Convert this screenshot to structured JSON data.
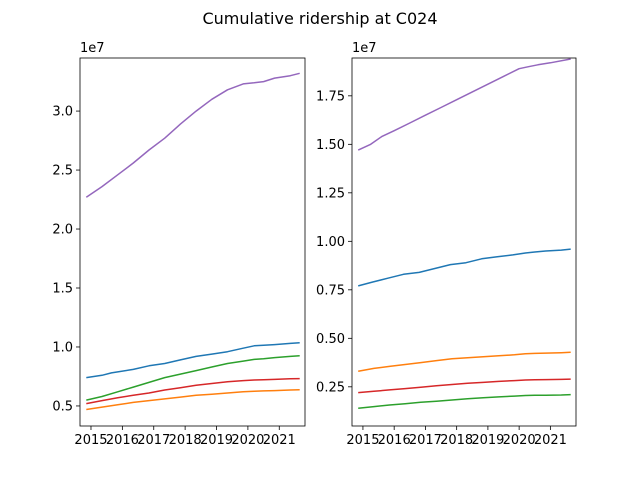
{
  "chart_data": {
    "title": "Cumulative ridership at C024",
    "panels": [
      {
        "type": "line",
        "xlabel": "",
        "ylabel": "",
        "y_offset_label": "1e7",
        "xlim": [
          2014.65,
          2021.82
        ],
        "ylim": [
          3.3,
          34.5
        ],
        "x_ticks": [
          2015,
          2016,
          2017,
          2018,
          2019,
          2020,
          2021
        ],
        "x_tick_labels": [
          "2015",
          "2016",
          "2017",
          "2018",
          "2019",
          "2020",
          "2021"
        ],
        "y_ticks": [
          5.0,
          10.0,
          15.0,
          20.0,
          25.0,
          30.0
        ],
        "y_tick_labels": [
          "0.5",
          "1.0",
          "1.5",
          "2.0",
          "2.5",
          "3.0"
        ],
        "grid": false,
        "series": [
          {
            "color": "#9467bd",
            "x": [
              2014.85,
              2015.35,
              2015.85,
              2016.35,
              2016.85,
              2017.35,
              2017.85,
              2018.35,
              2018.85,
              2019.35,
              2019.85,
              2020.2,
              2020.5,
              2020.85,
              2021.35,
              2021.65
            ],
            "values": [
              22.7,
              23.6,
              24.6,
              25.6,
              26.7,
              27.7,
              28.9,
              30.0,
              31.0,
              31.8,
              32.3,
              32.4,
              32.5,
              32.8,
              33.0,
              33.2
            ]
          },
          {
            "color": "#1f77b4",
            "x": [
              2014.85,
              2015.35,
              2015.65,
              2016.35,
              2016.85,
              2017.35,
              2017.85,
              2018.35,
              2018.85,
              2019.35,
              2019.85,
              2020.2,
              2020.5,
              2020.85,
              2021.35,
              2021.65
            ],
            "values": [
              7.4,
              7.6,
              7.8,
              8.1,
              8.4,
              8.6,
              8.9,
              9.2,
              9.4,
              9.6,
              9.9,
              10.1,
              10.15,
              10.2,
              10.3,
              10.35
            ]
          },
          {
            "color": "#2ca02c",
            "x": [
              2014.85,
              2015.35,
              2015.85,
              2016.35,
              2016.85,
              2017.35,
              2017.85,
              2018.35,
              2018.85,
              2019.35,
              2019.85,
              2020.2,
              2020.5,
              2020.85,
              2021.35,
              2021.65
            ],
            "values": [
              5.5,
              5.8,
              6.2,
              6.6,
              7.0,
              7.4,
              7.7,
              8.0,
              8.3,
              8.6,
              8.8,
              8.95,
              9.0,
              9.1,
              9.2,
              9.25
            ]
          },
          {
            "color": "#d62728",
            "x": [
              2014.85,
              2015.35,
              2015.85,
              2016.35,
              2016.85,
              2017.35,
              2017.85,
              2018.35,
              2018.85,
              2019.35,
              2019.85,
              2020.2,
              2020.5,
              2020.85,
              2021.35,
              2021.65
            ],
            "values": [
              5.2,
              5.45,
              5.7,
              5.9,
              6.1,
              6.35,
              6.55,
              6.75,
              6.9,
              7.05,
              7.15,
              7.2,
              7.22,
              7.25,
              7.3,
              7.32
            ]
          },
          {
            "color": "#ff7f0e",
            "x": [
              2014.85,
              2015.35,
              2015.85,
              2016.35,
              2016.85,
              2017.35,
              2017.85,
              2018.35,
              2018.85,
              2019.35,
              2019.85,
              2020.2,
              2020.5,
              2020.85,
              2021.35,
              2021.65
            ],
            "values": [
              4.7,
              4.9,
              5.1,
              5.3,
              5.45,
              5.6,
              5.75,
              5.9,
              6.0,
              6.1,
              6.2,
              6.25,
              6.28,
              6.3,
              6.35,
              6.38
            ]
          }
        ]
      },
      {
        "type": "line",
        "xlabel": "",
        "ylabel": "",
        "y_offset_label": "1e7",
        "xlim": [
          2014.65,
          2021.82
        ],
        "ylim": [
          0.48,
          19.45
        ],
        "x_ticks": [
          2015,
          2016,
          2017,
          2018,
          2019,
          2020,
          2021
        ],
        "x_tick_labels": [
          "2015",
          "2016",
          "2017",
          "2018",
          "2019",
          "2020",
          "2021"
        ],
        "y_ticks": [
          2.5,
          5.0,
          7.5,
          10.0,
          12.5,
          15.0,
          17.5
        ],
        "y_tick_labels": [
          "0.25",
          "0.50",
          "0.75",
          "1.00",
          "1.25",
          "1.50",
          "1.75"
        ],
        "grid": false,
        "series": [
          {
            "color": "#9467bd",
            "x": [
              2014.85,
              2015.25,
              2015.6,
              2016.0,
              2016.5,
              2017.0,
              2017.5,
              2018.0,
              2018.5,
              2019.0,
              2019.5,
              2020.0,
              2020.3,
              2020.6,
              2021.0,
              2021.65
            ],
            "values": [
              14.7,
              15.0,
              15.4,
              15.7,
              16.1,
              16.5,
              16.9,
              17.3,
              17.7,
              18.1,
              18.5,
              18.9,
              19.0,
              19.1,
              19.2,
              19.4
            ]
          },
          {
            "color": "#1f77b4",
            "x": [
              2014.85,
              2015.3,
              2015.8,
              2016.3,
              2016.8,
              2017.3,
              2017.8,
              2018.3,
              2018.8,
              2019.3,
              2019.8,
              2020.2,
              2020.5,
              2020.85,
              2021.35,
              2021.65
            ],
            "values": [
              7.7,
              7.9,
              8.1,
              8.3,
              8.4,
              8.6,
              8.8,
              8.9,
              9.1,
              9.2,
              9.3,
              9.4,
              9.45,
              9.5,
              9.55,
              9.6
            ]
          },
          {
            "color": "#ff7f0e",
            "x": [
              2014.85,
              2015.35,
              2015.85,
              2016.35,
              2016.85,
              2017.35,
              2017.85,
              2018.35,
              2018.85,
              2019.35,
              2019.85,
              2020.2,
              2020.5,
              2020.85,
              2021.35,
              2021.65
            ],
            "values": [
              3.3,
              3.45,
              3.55,
              3.65,
              3.75,
              3.85,
              3.95,
              4.0,
              4.05,
              4.1,
              4.15,
              4.2,
              4.22,
              4.24,
              4.26,
              4.28
            ]
          },
          {
            "color": "#d62728",
            "x": [
              2014.85,
              2015.35,
              2015.85,
              2016.35,
              2016.85,
              2017.35,
              2017.85,
              2018.35,
              2018.85,
              2019.35,
              2019.85,
              2020.2,
              2020.5,
              2020.85,
              2021.35,
              2021.65
            ],
            "values": [
              2.2,
              2.27,
              2.34,
              2.41,
              2.48,
              2.55,
              2.62,
              2.68,
              2.73,
              2.78,
              2.82,
              2.85,
              2.86,
              2.87,
              2.88,
              2.9
            ]
          },
          {
            "color": "#2ca02c",
            "x": [
              2014.85,
              2015.35,
              2015.85,
              2016.35,
              2016.85,
              2017.35,
              2017.85,
              2018.35,
              2018.85,
              2019.35,
              2019.85,
              2020.2,
              2020.5,
              2020.85,
              2021.35,
              2021.65
            ],
            "values": [
              1.4,
              1.48,
              1.56,
              1.63,
              1.7,
              1.76,
              1.82,
              1.88,
              1.94,
              1.98,
              2.02,
              2.05,
              2.06,
              2.07,
              2.08,
              2.1
            ]
          }
        ]
      }
    ]
  }
}
